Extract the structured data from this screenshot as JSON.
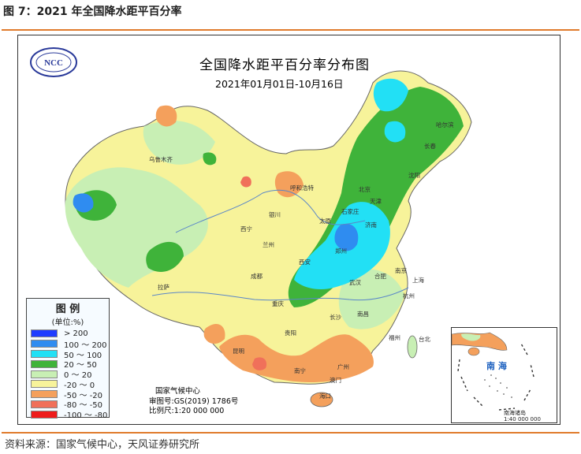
{
  "figure": {
    "title": "图 7：2021 年全国降水距平百分率",
    "source": "资料来源：国家气候中心，天风证券研究所"
  },
  "map": {
    "title": "全国降水距平百分率分布图",
    "date_range": "2021年01月01日-10月16日",
    "logo_text": "NCC",
    "credits": {
      "org": "国家气候中心",
      "map_no": "审图号:GS(2019) 1786号",
      "scale": "比例尺:1:20 000 000"
    },
    "inset": {
      "label": "南 海",
      "note": "南海诸岛",
      "scale": "1:40 000 000"
    },
    "cities": [
      "哈尔滨",
      "长春",
      "沈阳",
      "北京",
      "天津",
      "呼和浩特",
      "石家庄",
      "太原",
      "济南",
      "郑州",
      "银川",
      "西宁",
      "兰州",
      "西安",
      "乌鲁木齐",
      "拉萨",
      "成都",
      "重庆",
      "武汉",
      "合肥",
      "南京",
      "上海",
      "杭州",
      "长沙",
      "南昌",
      "福州",
      "贵阳",
      "昆明",
      "南宁",
      "广州",
      "澳门",
      "海口",
      "台北"
    ]
  },
  "legend": {
    "title": "图  例",
    "unit": "(单位:%)",
    "items": [
      {
        "label": "> 200",
        "color": "#1e3cff"
      },
      {
        "label": "100 ～ 200",
        "color": "#2f8cf0"
      },
      {
        "label": "50 ～ 100",
        "color": "#22e0f5"
      },
      {
        "label": "20 ～ 50",
        "color": "#3fb33a"
      },
      {
        "label": "0 ～ 20",
        "color": "#c8efb4"
      },
      {
        "label": "-20 ～ 0",
        "color": "#f7f39a"
      },
      {
        "label": "-50 ～ -20",
        "color": "#f4a05c"
      },
      {
        "label": "-80 ～ -50",
        "color": "#f0705a"
      },
      {
        "label": "-100 ～ -80",
        "color": "#ee1c1c"
      }
    ]
  }
}
